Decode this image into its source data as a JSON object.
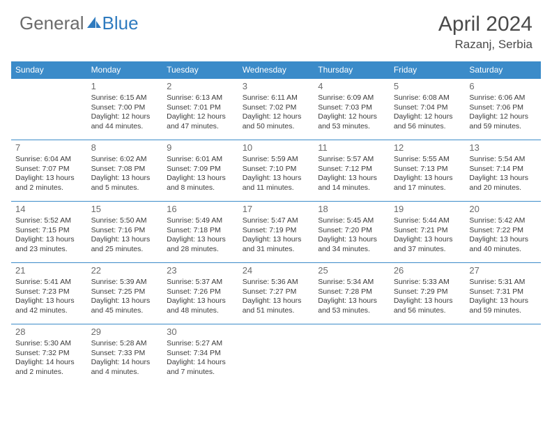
{
  "logo": {
    "part1": "General",
    "part2": "Blue"
  },
  "title": "April 2024",
  "location": "Razanj, Serbia",
  "colors": {
    "header_blue": "#3b8bc9",
    "logo_gray": "#6b6b6b",
    "logo_blue": "#2f7bbf",
    "text": "#3a3a3a",
    "title_gray": "#4a4a4a",
    "background": "#ffffff"
  },
  "day_headers": [
    "Sunday",
    "Monday",
    "Tuesday",
    "Wednesday",
    "Thursday",
    "Friday",
    "Saturday"
  ],
  "weeks": [
    [
      null,
      {
        "n": "1",
        "sr": "Sunrise: 6:15 AM",
        "ss": "Sunset: 7:00 PM",
        "dl": "Daylight: 12 hours and 44 minutes."
      },
      {
        "n": "2",
        "sr": "Sunrise: 6:13 AM",
        "ss": "Sunset: 7:01 PM",
        "dl": "Daylight: 12 hours and 47 minutes."
      },
      {
        "n": "3",
        "sr": "Sunrise: 6:11 AM",
        "ss": "Sunset: 7:02 PM",
        "dl": "Daylight: 12 hours and 50 minutes."
      },
      {
        "n": "4",
        "sr": "Sunrise: 6:09 AM",
        "ss": "Sunset: 7:03 PM",
        "dl": "Daylight: 12 hours and 53 minutes."
      },
      {
        "n": "5",
        "sr": "Sunrise: 6:08 AM",
        "ss": "Sunset: 7:04 PM",
        "dl": "Daylight: 12 hours and 56 minutes."
      },
      {
        "n": "6",
        "sr": "Sunrise: 6:06 AM",
        "ss": "Sunset: 7:06 PM",
        "dl": "Daylight: 12 hours and 59 minutes."
      }
    ],
    [
      {
        "n": "7",
        "sr": "Sunrise: 6:04 AM",
        "ss": "Sunset: 7:07 PM",
        "dl": "Daylight: 13 hours and 2 minutes."
      },
      {
        "n": "8",
        "sr": "Sunrise: 6:02 AM",
        "ss": "Sunset: 7:08 PM",
        "dl": "Daylight: 13 hours and 5 minutes."
      },
      {
        "n": "9",
        "sr": "Sunrise: 6:01 AM",
        "ss": "Sunset: 7:09 PM",
        "dl": "Daylight: 13 hours and 8 minutes."
      },
      {
        "n": "10",
        "sr": "Sunrise: 5:59 AM",
        "ss": "Sunset: 7:10 PM",
        "dl": "Daylight: 13 hours and 11 minutes."
      },
      {
        "n": "11",
        "sr": "Sunrise: 5:57 AM",
        "ss": "Sunset: 7:12 PM",
        "dl": "Daylight: 13 hours and 14 minutes."
      },
      {
        "n": "12",
        "sr": "Sunrise: 5:55 AM",
        "ss": "Sunset: 7:13 PM",
        "dl": "Daylight: 13 hours and 17 minutes."
      },
      {
        "n": "13",
        "sr": "Sunrise: 5:54 AM",
        "ss": "Sunset: 7:14 PM",
        "dl": "Daylight: 13 hours and 20 minutes."
      }
    ],
    [
      {
        "n": "14",
        "sr": "Sunrise: 5:52 AM",
        "ss": "Sunset: 7:15 PM",
        "dl": "Daylight: 13 hours and 23 minutes."
      },
      {
        "n": "15",
        "sr": "Sunrise: 5:50 AM",
        "ss": "Sunset: 7:16 PM",
        "dl": "Daylight: 13 hours and 25 minutes."
      },
      {
        "n": "16",
        "sr": "Sunrise: 5:49 AM",
        "ss": "Sunset: 7:18 PM",
        "dl": "Daylight: 13 hours and 28 minutes."
      },
      {
        "n": "17",
        "sr": "Sunrise: 5:47 AM",
        "ss": "Sunset: 7:19 PM",
        "dl": "Daylight: 13 hours and 31 minutes."
      },
      {
        "n": "18",
        "sr": "Sunrise: 5:45 AM",
        "ss": "Sunset: 7:20 PM",
        "dl": "Daylight: 13 hours and 34 minutes."
      },
      {
        "n": "19",
        "sr": "Sunrise: 5:44 AM",
        "ss": "Sunset: 7:21 PM",
        "dl": "Daylight: 13 hours and 37 minutes."
      },
      {
        "n": "20",
        "sr": "Sunrise: 5:42 AM",
        "ss": "Sunset: 7:22 PM",
        "dl": "Daylight: 13 hours and 40 minutes."
      }
    ],
    [
      {
        "n": "21",
        "sr": "Sunrise: 5:41 AM",
        "ss": "Sunset: 7:23 PM",
        "dl": "Daylight: 13 hours and 42 minutes."
      },
      {
        "n": "22",
        "sr": "Sunrise: 5:39 AM",
        "ss": "Sunset: 7:25 PM",
        "dl": "Daylight: 13 hours and 45 minutes."
      },
      {
        "n": "23",
        "sr": "Sunrise: 5:37 AM",
        "ss": "Sunset: 7:26 PM",
        "dl": "Daylight: 13 hours and 48 minutes."
      },
      {
        "n": "24",
        "sr": "Sunrise: 5:36 AM",
        "ss": "Sunset: 7:27 PM",
        "dl": "Daylight: 13 hours and 51 minutes."
      },
      {
        "n": "25",
        "sr": "Sunrise: 5:34 AM",
        "ss": "Sunset: 7:28 PM",
        "dl": "Daylight: 13 hours and 53 minutes."
      },
      {
        "n": "26",
        "sr": "Sunrise: 5:33 AM",
        "ss": "Sunset: 7:29 PM",
        "dl": "Daylight: 13 hours and 56 minutes."
      },
      {
        "n": "27",
        "sr": "Sunrise: 5:31 AM",
        "ss": "Sunset: 7:31 PM",
        "dl": "Daylight: 13 hours and 59 minutes."
      }
    ],
    [
      {
        "n": "28",
        "sr": "Sunrise: 5:30 AM",
        "ss": "Sunset: 7:32 PM",
        "dl": "Daylight: 14 hours and 2 minutes."
      },
      {
        "n": "29",
        "sr": "Sunrise: 5:28 AM",
        "ss": "Sunset: 7:33 PM",
        "dl": "Daylight: 14 hours and 4 minutes."
      },
      {
        "n": "30",
        "sr": "Sunrise: 5:27 AM",
        "ss": "Sunset: 7:34 PM",
        "dl": "Daylight: 14 hours and 7 minutes."
      },
      null,
      null,
      null,
      null
    ]
  ]
}
